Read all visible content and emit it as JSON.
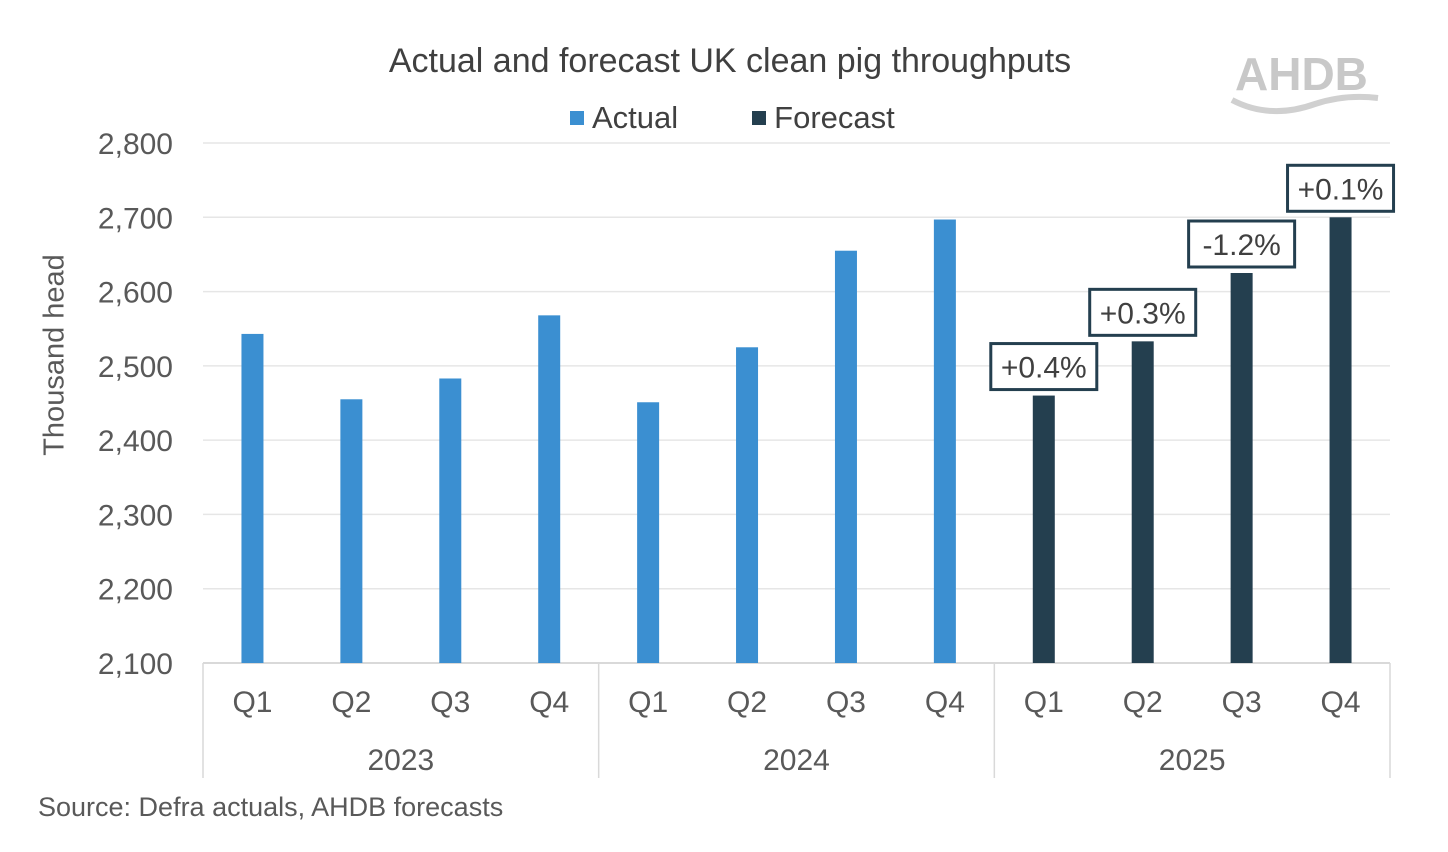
{
  "logo_text": "AHDB",
  "source": "Source: Defra actuals, AHDB forecasts",
  "colors": {
    "actual": "#3b8fd1",
    "forecast": "#243f4f",
    "grid": "#e6e6e6",
    "axis": "#d9d9d9",
    "text": "#595959"
  },
  "chart_data": {
    "type": "bar",
    "title": "Actual and forecast UK clean pig throughputs",
    "ylabel": "Thousand head",
    "xlabel": "",
    "ylim": [
      2100,
      2800
    ],
    "yticks": [
      "2,100",
      "2,200",
      "2,300",
      "2,400",
      "2,500",
      "2,600",
      "2,700",
      "2,800"
    ],
    "ytick_values": [
      2100,
      2200,
      2300,
      2400,
      2500,
      2600,
      2700,
      2800
    ],
    "grid": true,
    "legend_position": "top",
    "groups": [
      "2023",
      "2024",
      "2025"
    ],
    "categories": [
      "Q1",
      "Q2",
      "Q3",
      "Q4",
      "Q1",
      "Q2",
      "Q3",
      "Q4",
      "Q1",
      "Q2",
      "Q3",
      "Q4"
    ],
    "series": [
      {
        "name": "Actual",
        "color": "#3b8fd1",
        "values": [
          2543,
          2455,
          2483,
          2568,
          2451,
          2525,
          2655,
          2697,
          null,
          null,
          null,
          null
        ]
      },
      {
        "name": "Forecast",
        "color": "#243f4f",
        "values": [
          null,
          null,
          null,
          null,
          null,
          null,
          null,
          null,
          2460,
          2533,
          2625,
          2700
        ]
      }
    ],
    "annotations": [
      {
        "index": 8,
        "text": "+0.4%"
      },
      {
        "index": 9,
        "text": "+0.3%"
      },
      {
        "index": 10,
        "text": "-1.2%"
      },
      {
        "index": 11,
        "text": "+0.1%"
      }
    ]
  }
}
